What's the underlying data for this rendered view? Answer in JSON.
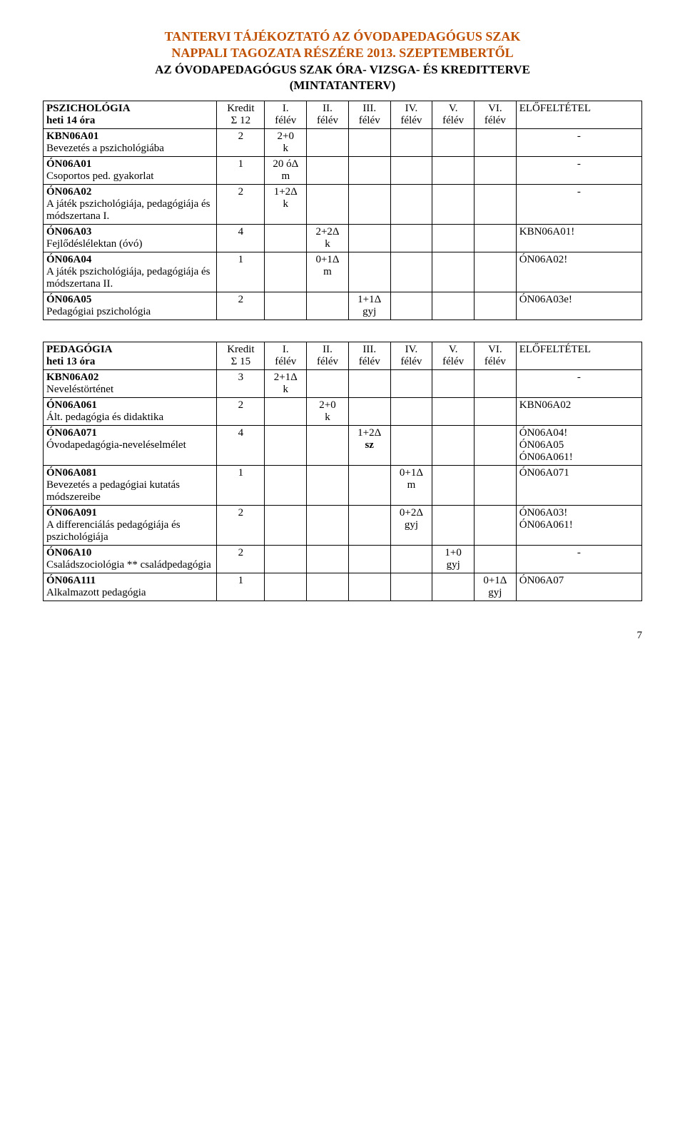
{
  "header": {
    "line1": "TANTERVI TÁJÉKOZTATÓ AZ ÓVODAPEDAGÓGUS SZAK",
    "line2": "NAPPALI TAGOZATA RÉSZÉRE 2013. SZEPTEMBERTŐL",
    "line3": "AZ ÓVODAPEDAGÓGUS SZAK ÓRA- VIZSGA- ÉS KREDITTERVE",
    "line4": "(MINTATANTERV)"
  },
  "table1": {
    "head": {
      "name_l1": "PSZICHOLÓGIA",
      "name_l2": "heti 14 óra",
      "kredit_l1": "Kredit",
      "kredit_l2": "Σ 12",
      "s1l1": "I.",
      "s1l2": "félév",
      "s2l1": "II.",
      "s2l2": "félév",
      "s3l1": "III.",
      "s3l2": "félév",
      "s4l1": "IV.",
      "s4l2": "félév",
      "s5l1": "V.",
      "s5l2": "félév",
      "s6l1": "VI.",
      "s6l2": "félév",
      "pre": "ELŐFELTÉTEL"
    },
    "rows": [
      {
        "code": "KBN06A01",
        "name": "Bevezetés a pszichológiába",
        "kr": "2",
        "s1l1": "2+0",
        "s1l2": "k",
        "s2l1": "",
        "s2l2": "",
        "s3l1": "",
        "s3l2": "",
        "s4l1": "",
        "s4l2": "",
        "s5l1": "",
        "s5l2": "",
        "s6l1": "",
        "s6l2": "",
        "pre": "-"
      },
      {
        "code": "ÓN06A01",
        "name": "Csoportos ped. gyakorlat",
        "kr": "1",
        "s1l1": "20 óΔ",
        "s1l2": "m",
        "s2l1": "",
        "s2l2": "",
        "s3l1": "",
        "s3l2": "",
        "s4l1": "",
        "s4l2": "",
        "s5l1": "",
        "s5l2": "",
        "s6l1": "",
        "s6l2": "",
        "pre": "-"
      },
      {
        "code": "ÓN06A02",
        "name": "A játék pszichológiája, pedagógiája és módszertana I.",
        "kr": "2",
        "s1l1": "1+2Δ",
        "s1l2": "k",
        "s2l1": "",
        "s2l2": "",
        "s3l1": "",
        "s3l2": "",
        "s4l1": "",
        "s4l2": "",
        "s5l1": "",
        "s5l2": "",
        "s6l1": "",
        "s6l2": "",
        "pre": "-"
      },
      {
        "code": "ÓN06A03",
        "name": "Fejlődéslélektan (óvó)",
        "kr": "4",
        "s1l1": "",
        "s1l2": "",
        "s2l1": "2+2Δ",
        "s2l2": "k",
        "s3l1": "",
        "s3l2": "",
        "s4l1": "",
        "s4l2": "",
        "s5l1": "",
        "s5l2": "",
        "s6l1": "",
        "s6l2": "",
        "pre": "KBN06A01!"
      },
      {
        "code": "ÓN06A04",
        "name": "A játék pszichológiája, pedagógiája és módszertana II.",
        "kr": "1",
        "s1l1": "",
        "s1l2": "",
        "s2l1": "0+1Δ",
        "s2l2": "m",
        "s3l1": "",
        "s3l2": "",
        "s4l1": "",
        "s4l2": "",
        "s5l1": "",
        "s5l2": "",
        "s6l1": "",
        "s6l2": "",
        "pre": "ÓN06A02!"
      },
      {
        "code": "ÓN06A05",
        "name": "Pedagógiai pszichológia",
        "kr": "2",
        "s1l1": "",
        "s1l2": "",
        "s2l1": "",
        "s2l2": "",
        "s3l1": "1+1Δ",
        "s3l2": "gyj",
        "s4l1": "",
        "s4l2": "",
        "s5l1": "",
        "s5l2": "",
        "s6l1": "",
        "s6l2": "",
        "pre": "ÓN06A03e!"
      }
    ]
  },
  "table2": {
    "head": {
      "name_l1": "PEDAGÓGIA",
      "name_l2": "heti 13 óra",
      "kredit_l1": "Kredit",
      "kredit_l2": "Σ 15",
      "s1l1": "I.",
      "s1l2": "félév",
      "s2l1": "II.",
      "s2l2": "félév",
      "s3l1": "III.",
      "s3l2": "félév",
      "s4l1": "IV.",
      "s4l2": "félév",
      "s5l1": "V.",
      "s5l2": "félév",
      "s6l1": "VI.",
      "s6l2": "félév",
      "pre": "ELŐFELTÉTEL"
    },
    "rows": [
      {
        "code": "KBN06A02",
        "name": "Neveléstörténet",
        "kr": "3",
        "s1l1": "2+1Δ",
        "s1l2": "k",
        "s2l1": "",
        "s2l2": "",
        "s3l1": "",
        "s3l2": "",
        "s4l1": "",
        "s4l2": "",
        "s5l1": "",
        "s5l2": "",
        "s6l1": "",
        "s6l2": "",
        "pre": "-"
      },
      {
        "code": "ÓN06A061",
        "name": "Ált. pedagógia és didaktika",
        "kr": "2",
        "s1l1": "",
        "s1l2": "",
        "s2l1": "2+0",
        "s2l2": "k",
        "s3l1": "",
        "s3l2": "",
        "s4l1": "",
        "s4l2": "",
        "s5l1": "",
        "s5l2": "",
        "s6l1": "",
        "s6l2": "",
        "pre": "KBN06A02"
      },
      {
        "code": "ÓN06A071",
        "name": "Óvodapedagógia-neveléselmélet",
        "kr": "4",
        "s1l1": "",
        "s1l2": "",
        "s2l1": "",
        "s2l2": "",
        "s3l1": "1+2Δ",
        "s3l2": "sz",
        "s3bold": true,
        "s4l1": "",
        "s4l2": "",
        "s5l1": "",
        "s5l2": "",
        "s6l1": "",
        "s6l2": "",
        "pre": "ÓN06A04!\nÓN06A05\nÓN06A061!"
      },
      {
        "code": "ÓN06A081",
        "name": "Bevezetés a pedagógiai kutatás módszereibe",
        "kr": "1",
        "s1l1": "",
        "s1l2": "",
        "s2l1": "",
        "s2l2": "",
        "s3l1": "",
        "s3l2": "",
        "s4l1": "0+1Δ",
        "s4l2": "m",
        "s5l1": "",
        "s5l2": "",
        "s6l1": "",
        "s6l2": "",
        "pre": "ÓN06A071"
      },
      {
        "code": "ÓN06A091",
        "name": "A differenciálás pedagógiája és pszichológiája",
        "kr": "2",
        "s1l1": "",
        "s1l2": "",
        "s2l1": "",
        "s2l2": "",
        "s3l1": "",
        "s3l2": "",
        "s4l1": "0+2Δ",
        "s4l2": "gyj",
        "s5l1": "",
        "s5l2": "",
        "s6l1": "",
        "s6l2": "",
        "pre": "ÓN06A03!\nÓN06A061!"
      },
      {
        "code": "ÓN06A10",
        "name": "Családszociológia ** családpedagógia",
        "kr": "2",
        "s1l1": "",
        "s1l2": "",
        "s2l1": "",
        "s2l2": "",
        "s3l1": "",
        "s3l2": "",
        "s4l1": "",
        "s4l2": "",
        "s5l1": "1+0",
        "s5l2": "gyj",
        "s6l1": "",
        "s6l2": "",
        "pre": "-"
      },
      {
        "code": "ÓN06A111",
        "name": "Alkalmazott pedagógia",
        "kr": "1",
        "s1l1": "",
        "s1l2": "",
        "s2l1": "",
        "s2l2": "",
        "s3l1": "",
        "s3l2": "",
        "s4l1": "",
        "s4l2": "",
        "s5l1": "",
        "s5l2": "",
        "s6l1": "0+1Δ",
        "s6l2": "gyj",
        "pre": "ÓN06A07"
      }
    ]
  },
  "pagenum": "7"
}
